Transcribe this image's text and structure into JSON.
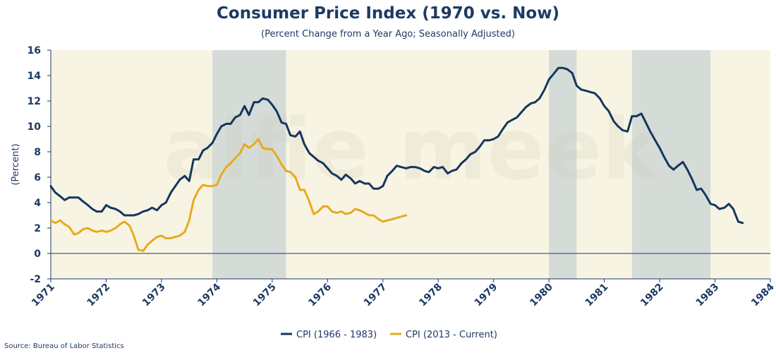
{
  "chart_data": {
    "type": "line",
    "title": "Consumer Price Index (1970 vs. Now)",
    "subtitle": "(Percent Change from a Year Ago; Seasonally Adjusted)",
    "ylabel": "(Percent)",
    "source": "Source: Bureau of Labor Statistics",
    "watermark": "alfie meek",
    "xlim": [
      1971,
      1984
    ],
    "ylim": [
      -2,
      16
    ],
    "yticks": [
      -2,
      0,
      2,
      4,
      6,
      8,
      10,
      12,
      14,
      16
    ],
    "xticks": [
      "1971",
      "1972",
      "1973",
      "1974",
      "1975",
      "1976",
      "1977",
      "1978",
      "1979",
      "1980",
      "1981",
      "1982",
      "1983",
      "1984"
    ],
    "grid": false,
    "legend_position": "bottom",
    "colors": {
      "plot_background": "#f8f4e4",
      "recession_band": "#d5dcd8",
      "axis": "#1d3a63",
      "zero_line": "#1d3a63"
    },
    "recessions": [
      [
        1973.92,
        1975.25
      ],
      [
        1980.0,
        1980.5
      ],
      [
        1981.5,
        1982.92
      ]
    ],
    "series": [
      {
        "name": "CPI (1966 - 1983)",
        "color": "#15365e",
        "x": [
          1971.0,
          1971.08,
          1971.17,
          1971.25,
          1971.33,
          1971.42,
          1971.5,
          1971.58,
          1971.67,
          1971.75,
          1971.83,
          1971.92,
          1972.0,
          1972.08,
          1972.17,
          1972.25,
          1972.33,
          1972.42,
          1972.5,
          1972.58,
          1972.67,
          1972.75,
          1972.83,
          1972.92,
          1973.0,
          1973.08,
          1973.17,
          1973.25,
          1973.33,
          1973.42,
          1973.5,
          1973.58,
          1973.67,
          1973.75,
          1973.83,
          1973.92,
          1974.0,
          1974.08,
          1974.17,
          1974.25,
          1974.33,
          1974.42,
          1974.5,
          1974.58,
          1974.67,
          1974.75,
          1974.83,
          1974.92,
          1975.0,
          1975.08,
          1975.17,
          1975.25,
          1975.33,
          1975.42,
          1975.5,
          1975.58,
          1975.67,
          1975.75,
          1975.83,
          1975.92,
          1976.0,
          1976.08,
          1976.17,
          1976.25,
          1976.33,
          1976.42,
          1976.5,
          1976.58,
          1976.67,
          1976.75,
          1976.83,
          1976.92,
          1977.0,
          1977.08,
          1977.17,
          1977.25,
          1977.33,
          1977.42,
          1977.5,
          1977.58,
          1977.67,
          1977.75,
          1977.83,
          1977.92,
          1978.0,
          1978.08,
          1978.17,
          1978.25,
          1978.33,
          1978.42,
          1978.5,
          1978.58,
          1978.67,
          1978.75,
          1978.83,
          1978.92,
          1979.0,
          1979.08,
          1979.17,
          1979.25,
          1979.33,
          1979.42,
          1979.5,
          1979.58,
          1979.67,
          1979.75,
          1979.83,
          1979.92,
          1980.0,
          1980.08,
          1980.17,
          1980.25,
          1980.33,
          1980.42,
          1980.5,
          1980.58,
          1980.67,
          1980.75,
          1980.83,
          1980.92,
          1981.0,
          1981.08,
          1981.17,
          1981.25,
          1981.33,
          1981.42,
          1981.5,
          1981.58,
          1981.67,
          1981.75,
          1981.83,
          1981.92,
          1982.0,
          1982.08,
          1982.17,
          1982.25,
          1982.33,
          1982.42,
          1982.5,
          1982.58,
          1982.67,
          1982.75,
          1982.83,
          1982.92,
          1983.0,
          1983.08,
          1983.17,
          1983.25,
          1983.33,
          1983.42,
          1983.5
        ],
        "values": [
          5.3,
          4.8,
          4.5,
          4.2,
          4.4,
          4.4,
          4.4,
          4.1,
          3.8,
          3.5,
          3.3,
          3.3,
          3.8,
          3.6,
          3.5,
          3.3,
          3.0,
          3.0,
          3.0,
          3.1,
          3.3,
          3.4,
          3.6,
          3.4,
          3.8,
          4.0,
          4.8,
          5.3,
          5.8,
          6.1,
          5.7,
          7.4,
          7.4,
          8.1,
          8.3,
          8.7,
          9.4,
          10.0,
          10.2,
          10.2,
          10.7,
          10.9,
          11.6,
          10.9,
          11.9,
          11.9,
          12.2,
          12.1,
          11.7,
          11.2,
          10.3,
          10.2,
          9.3,
          9.2,
          9.6,
          8.6,
          7.9,
          7.6,
          7.3,
          7.1,
          6.7,
          6.3,
          6.1,
          5.8,
          6.2,
          5.9,
          5.5,
          5.7,
          5.5,
          5.5,
          5.1,
          5.1,
          5.3,
          6.1,
          6.5,
          6.9,
          6.8,
          6.7,
          6.8,
          6.8,
          6.7,
          6.5,
          6.4,
          6.8,
          6.7,
          6.8,
          6.3,
          6.5,
          6.6,
          7.1,
          7.4,
          7.8,
          8.0,
          8.4,
          8.9,
          8.9,
          9.0,
          9.2,
          9.8,
          10.3,
          10.5,
          10.7,
          11.1,
          11.5,
          11.8,
          11.9,
          12.2,
          12.9,
          13.7,
          14.1,
          14.6,
          14.6,
          14.5,
          14.2,
          13.2,
          12.9,
          12.8,
          12.7,
          12.6,
          12.2,
          11.6,
          11.2,
          10.4,
          10.0,
          9.7,
          9.6,
          10.8,
          10.8,
          11.0,
          10.3,
          9.6,
          8.9,
          8.3,
          7.6,
          6.9,
          6.6,
          6.9,
          7.2,
          6.6,
          5.9,
          5.0,
          5.1,
          4.6,
          3.9,
          3.8,
          3.5,
          3.6,
          3.9,
          3.5,
          2.5,
          2.4
        ]
      },
      {
        "name": "CPI (2013 - Current)",
        "color": "#e8aa1d",
        "x": [
          1971.0,
          1971.08,
          1971.17,
          1971.25,
          1971.33,
          1971.42,
          1971.5,
          1971.58,
          1971.67,
          1971.75,
          1971.83,
          1971.92,
          1972.0,
          1972.08,
          1972.17,
          1972.25,
          1972.33,
          1972.42,
          1972.5,
          1972.58,
          1972.67,
          1972.75,
          1972.83,
          1972.92,
          1973.0,
          1973.08,
          1973.17,
          1973.25,
          1973.33,
          1973.42,
          1973.5,
          1973.58,
          1973.67,
          1973.75,
          1973.83,
          1973.92,
          1974.0,
          1974.08,
          1974.17,
          1974.25,
          1974.33,
          1974.42,
          1974.5,
          1974.58,
          1974.67,
          1974.75,
          1974.83,
          1974.92,
          1975.0,
          1975.08,
          1975.17,
          1975.25,
          1975.33,
          1975.42,
          1975.5,
          1975.58,
          1975.67,
          1975.75,
          1975.83,
          1975.92,
          1976.0,
          1976.08,
          1976.17,
          1976.25,
          1976.33,
          1976.42,
          1976.5,
          1976.58,
          1976.67,
          1976.75,
          1976.83,
          1976.92,
          1977.0,
          1977.08,
          1977.17,
          1977.25,
          1977.33,
          1977.42
        ],
        "values": [
          2.6,
          2.4,
          2.6,
          2.3,
          2.1,
          1.5,
          1.6,
          1.9,
          2.0,
          1.8,
          1.7,
          1.8,
          1.7,
          1.8,
          2.0,
          2.3,
          2.5,
          2.2,
          1.4,
          0.3,
          0.2,
          0.7,
          1.0,
          1.3,
          1.4,
          1.2,
          1.2,
          1.3,
          1.4,
          1.7,
          2.6,
          4.2,
          5.0,
          5.4,
          5.3,
          5.3,
          5.4,
          6.2,
          6.8,
          7.1,
          7.5,
          7.9,
          8.6,
          8.3,
          8.6,
          9.0,
          8.3,
          8.2,
          8.2,
          7.7,
          7.0,
          6.5,
          6.4,
          6.0,
          5.0,
          5.0,
          4.1,
          3.1,
          3.3,
          3.7,
          3.7,
          3.3,
          3.2,
          3.3,
          3.1,
          3.2,
          3.5,
          3.4,
          3.2,
          3.0,
          3.0,
          2.7,
          2.5,
          2.6,
          2.7,
          2.8,
          2.9,
          3.0
        ]
      }
    ]
  }
}
